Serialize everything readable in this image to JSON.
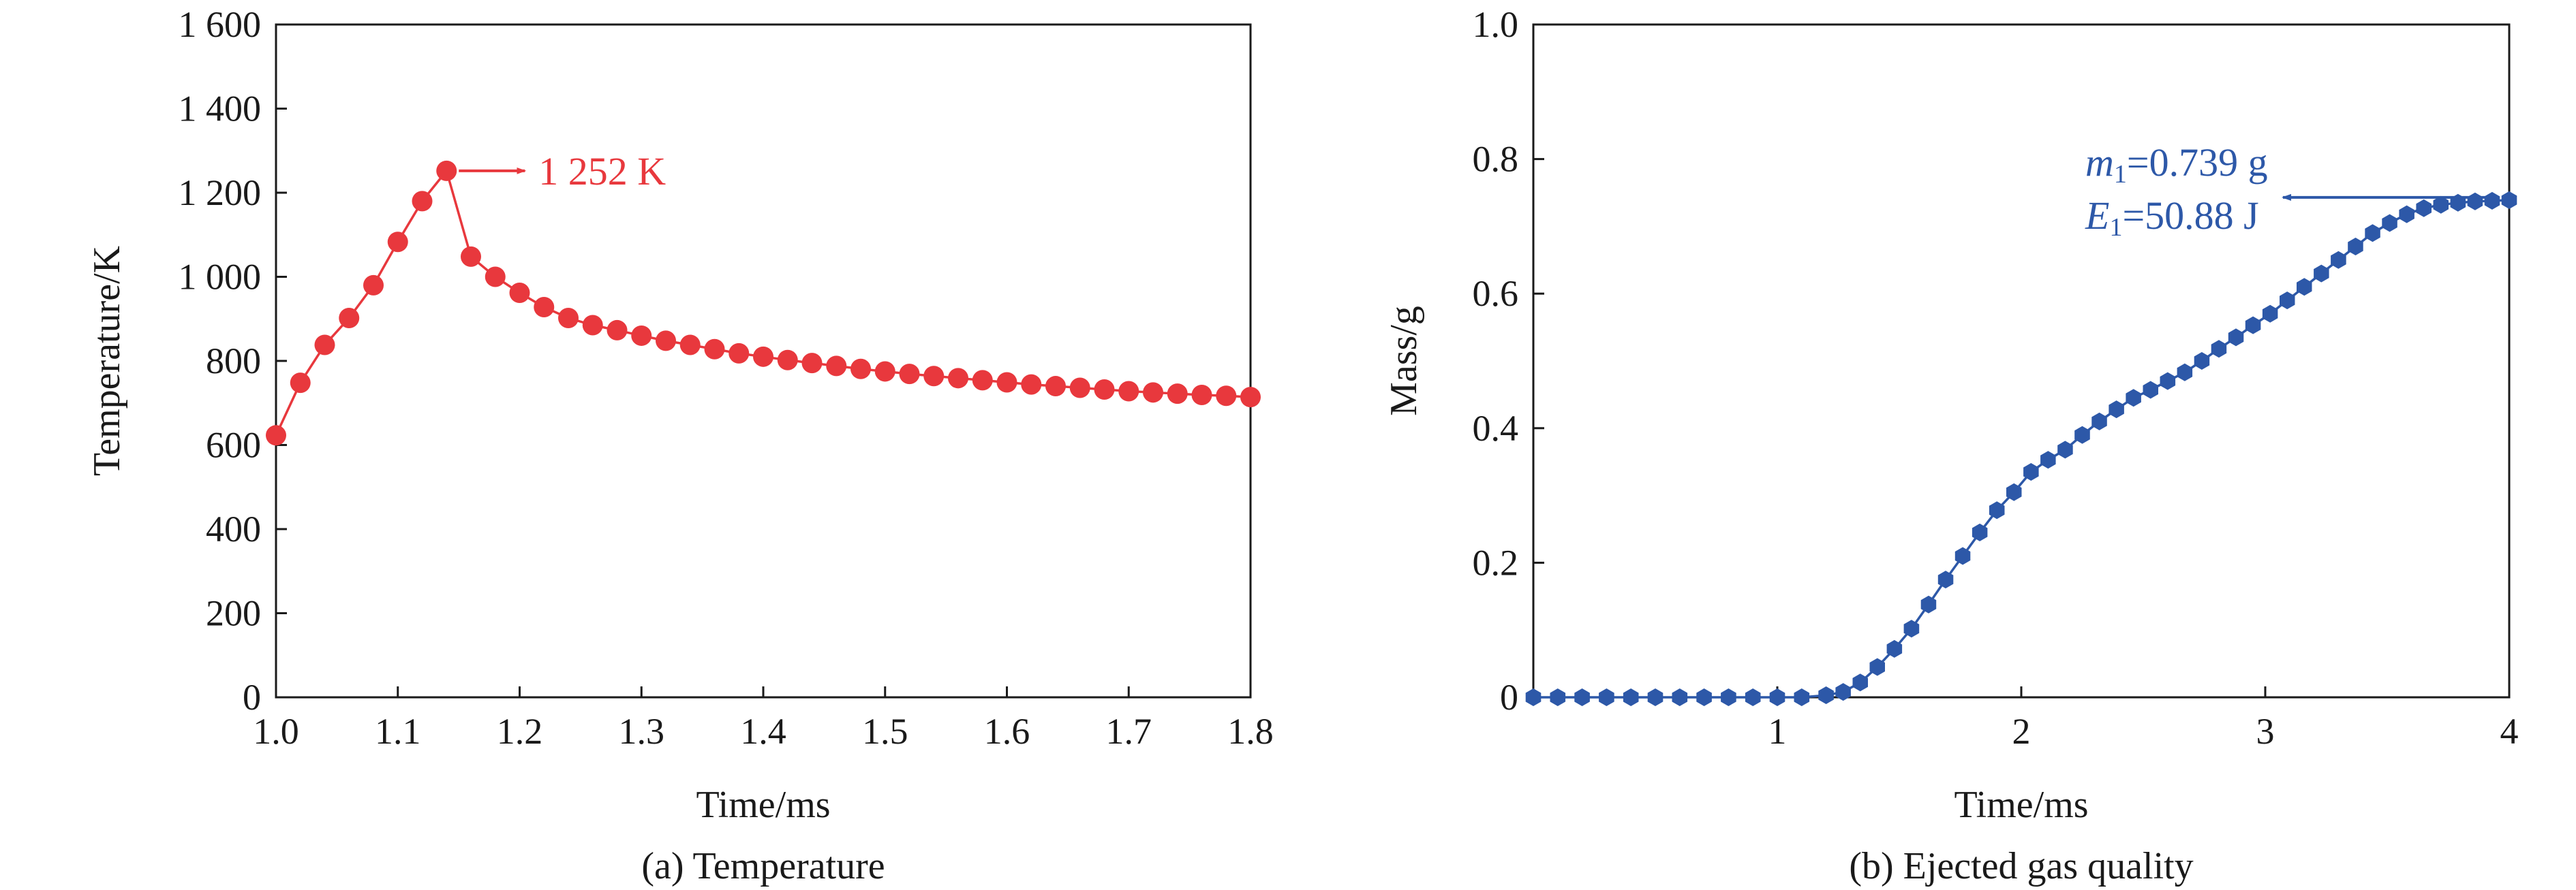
{
  "chart_data": [
    {
      "type": "line",
      "caption": "(a) Temperature",
      "xlabel": "Time/ms",
      "ylabel": "Temperature/K",
      "xlim": [
        1.0,
        1.8
      ],
      "ylim": [
        0,
        1600
      ],
      "xticks": [
        "1.0",
        "1.1",
        "1.2",
        "1.3",
        "1.4",
        "1.5",
        "1.6",
        "1.7",
        "1.8"
      ],
      "yticks": [
        "0",
        "200",
        "400",
        "600",
        "800",
        "1 000",
        "1 200",
        "1 400",
        "1 600"
      ],
      "color": "#e8383d",
      "annotation": {
        "text": "1 252 K",
        "x": 1.14,
        "y": 1252
      },
      "series": [
        {
          "x": [
            1.0,
            1.02,
            1.04,
            1.06,
            1.08,
            1.1,
            1.12,
            1.14,
            1.16,
            1.18,
            1.2,
            1.22,
            1.24,
            1.26,
            1.28,
            1.3,
            1.32,
            1.34,
            1.36,
            1.38,
            1.4,
            1.42,
            1.44,
            1.46,
            1.48,
            1.5,
            1.52,
            1.54,
            1.56,
            1.58,
            1.6,
            1.62,
            1.64,
            1.66,
            1.68,
            1.7,
            1.72,
            1.74,
            1.76,
            1.78,
            1.8
          ],
          "y": [
            623,
            748,
            838,
            902,
            980,
            1083,
            1180,
            1252,
            1048,
            1000,
            962,
            928,
            902,
            885,
            873,
            860,
            848,
            838,
            828,
            818,
            810,
            802,
            795,
            788,
            781,
            775,
            769,
            764,
            759,
            754,
            749,
            744,
            740,
            736,
            732,
            728,
            725,
            722,
            719,
            717,
            714
          ]
        }
      ]
    },
    {
      "type": "line",
      "caption": "(b) Ejected gas quality",
      "xlabel": "Time/ms",
      "ylabel": "Mass/g",
      "xlim": [
        0,
        4
      ],
      "ylim": [
        0,
        1.0
      ],
      "xticks": [
        "1",
        "2",
        "3",
        "4"
      ],
      "yticks": [
        "0",
        "0.2",
        "0.4",
        "0.6",
        "0.8",
        "1.0"
      ],
      "color": "#2d58a8",
      "annotation": {
        "m_label": "m",
        "m_sub": "1",
        "m_value": "=0.739 g",
        "e_label": "E",
        "e_sub": "1",
        "e_value": "=50.88 J"
      },
      "series": [
        {
          "x": [
            0.0,
            0.1,
            0.2,
            0.3,
            0.4,
            0.5,
            0.6,
            0.7,
            0.8,
            0.9,
            1.0,
            1.1,
            1.2,
            1.27,
            1.34,
            1.41,
            1.48,
            1.55,
            1.62,
            1.69,
            1.76,
            1.83,
            1.9,
            1.97,
            2.04,
            2.11,
            2.18,
            2.25,
            2.32,
            2.39,
            2.46,
            2.53,
            2.6,
            2.67,
            2.74,
            2.81,
            2.88,
            2.95,
            3.02,
            3.09,
            3.16,
            3.23,
            3.3,
            3.37,
            3.44,
            3.51,
            3.58,
            3.65,
            3.72,
            3.79,
            3.86,
            3.93,
            4.0
          ],
          "y": [
            0,
            0,
            0,
            0,
            0,
            0,
            0,
            0,
            0,
            0,
            0,
            0,
            0.003,
            0.008,
            0.022,
            0.045,
            0.072,
            0.102,
            0.138,
            0.175,
            0.21,
            0.245,
            0.278,
            0.305,
            0.335,
            0.353,
            0.368,
            0.39,
            0.41,
            0.428,
            0.445,
            0.457,
            0.47,
            0.483,
            0.5,
            0.518,
            0.535,
            0.553,
            0.57,
            0.59,
            0.61,
            0.63,
            0.65,
            0.67,
            0.69,
            0.705,
            0.718,
            0.727,
            0.732,
            0.735,
            0.737,
            0.738,
            0.739
          ]
        }
      ]
    }
  ]
}
